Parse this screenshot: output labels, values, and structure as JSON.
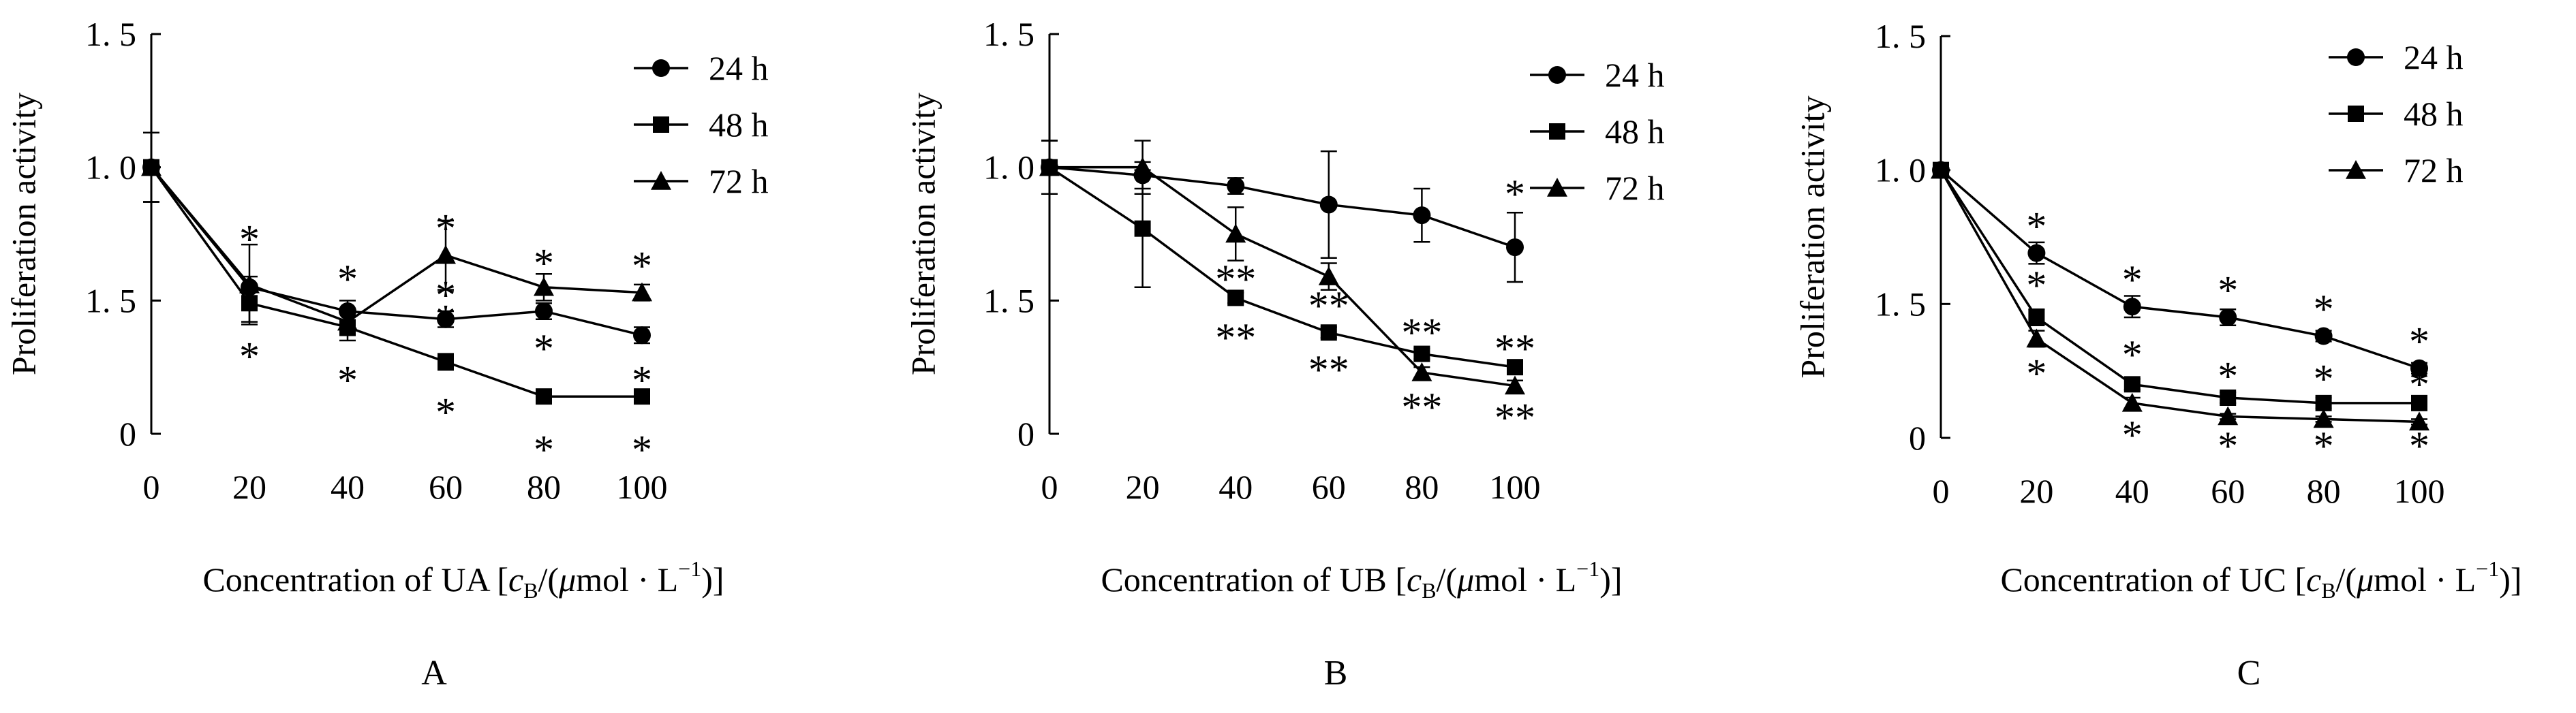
{
  "chart_data": [
    {
      "type": "line",
      "panel_label": "A",
      "ylabel": "Proliferation activity",
      "xlabel": {
        "prefix": "Concentration of ",
        "compound": "UA",
        "unit_open": " [",
        "c": "c",
        "sub": "B",
        "unit_mid": "/(",
        "mu": "μ",
        "unit_rest": "mol · L",
        "sup": "−1",
        "unit_close": ")]"
      },
      "y_tick_labels": [
        "0",
        "1. 5",
        "1. 0",
        "1. 5"
      ],
      "x_tick_labels": [
        "0",
        "20",
        "40",
        "60",
        "80",
        "100"
      ],
      "x": [
        0,
        20,
        40,
        60,
        80,
        100
      ],
      "ylim": [
        0,
        1.5
      ],
      "legend_position": "top-right",
      "series": [
        {
          "name": "24 h",
          "marker": "circle",
          "values": [
            1.0,
            0.55,
            0.46,
            0.43,
            0.46,
            0.37
          ],
          "err": [
            0.13,
            0.04,
            0.04,
            0.03,
            0.03,
            0.03
          ]
        },
        {
          "name": "48 h",
          "marker": "square",
          "values": [
            1.0,
            0.49,
            0.4,
            0.27,
            0.14,
            0.14
          ],
          "err": [
            0.13,
            0.07,
            0.05,
            0.03,
            0.02,
            0.02
          ]
        },
        {
          "name": "72 h",
          "marker": "triangle",
          "values": [
            1.0,
            0.56,
            0.42,
            0.67,
            0.55,
            0.53
          ],
          "err": [
            0.13,
            0.15,
            0.05,
            0.13,
            0.05,
            0.03
          ]
        }
      ],
      "annotations": [
        {
          "x": 20,
          "y": 0.73,
          "text": "*"
        },
        {
          "x": 20,
          "y": 0.29,
          "text": "*"
        },
        {
          "x": 40,
          "y": 0.58,
          "text": "*"
        },
        {
          "x": 40,
          "y": 0.2,
          "text": "*"
        },
        {
          "x": 60,
          "y": 0.77,
          "text": "*"
        },
        {
          "x": 60,
          "y": 0.52,
          "text": "*"
        },
        {
          "x": 60,
          "y": 0.43,
          "text": "*"
        },
        {
          "x": 60,
          "y": 0.08,
          "text": "*"
        },
        {
          "x": 80,
          "y": 0.64,
          "text": "*"
        },
        {
          "x": 80,
          "y": 0.32,
          "text": "*"
        },
        {
          "x": 80,
          "y": -0.06,
          "text": "*"
        },
        {
          "x": 100,
          "y": 0.63,
          "text": "*"
        },
        {
          "x": 100,
          "y": 0.2,
          "text": "*"
        },
        {
          "x": 100,
          "y": -0.06,
          "text": "*"
        }
      ]
    },
    {
      "type": "line",
      "panel_label": "B",
      "ylabel": "Proliferation activity",
      "xlabel": {
        "prefix": "Concentration of ",
        "compound": "UB",
        "unit_open": " [",
        "c": "c",
        "sub": "B",
        "unit_mid": "/(",
        "mu": "μ",
        "unit_rest": "mol · L",
        "sup": "−1",
        "unit_close": ")]"
      },
      "y_tick_labels": [
        "0",
        "1. 5",
        "1. 0",
        "1. 5"
      ],
      "x_tick_labels": [
        "0",
        "20",
        "40",
        "60",
        "80",
        "100"
      ],
      "x": [
        0,
        20,
        40,
        60,
        80,
        100
      ],
      "ylim": [
        0,
        1.5
      ],
      "legend_position": "top-right",
      "series": [
        {
          "name": "24 h",
          "marker": "circle",
          "values": [
            1.0,
            0.97,
            0.93,
            0.86,
            0.82,
            0.7
          ],
          "err": [
            0.1,
            0.05,
            0.03,
            0.2,
            0.1,
            0.13
          ]
        },
        {
          "name": "48 h",
          "marker": "square",
          "values": [
            1.0,
            0.77,
            0.51,
            0.38,
            0.3,
            0.25
          ],
          "err": [
            0.1,
            0.22,
            0.02,
            0.02,
            0.02,
            0.02
          ]
        },
        {
          "name": "72 h",
          "marker": "triangle",
          "values": [
            1.0,
            1.0,
            0.75,
            0.59,
            0.23,
            0.18
          ],
          "err": [
            0.1,
            0.1,
            0.1,
            0.05,
            0.02,
            0.02
          ]
        }
      ],
      "annotations": [
        {
          "x": 40,
          "y": 0.58,
          "text": "**"
        },
        {
          "x": 40,
          "y": 0.36,
          "text": "**"
        },
        {
          "x": 60,
          "y": 0.48,
          "text": "**"
        },
        {
          "x": 60,
          "y": 0.24,
          "text": "**"
        },
        {
          "x": 80,
          "y": 0.38,
          "text": "**"
        },
        {
          "x": 80,
          "y": 0.1,
          "text": "**"
        },
        {
          "x": 100,
          "y": 0.9,
          "text": "*"
        },
        {
          "x": 100,
          "y": 0.32,
          "text": "**"
        },
        {
          "x": 100,
          "y": 0.06,
          "text": "**"
        }
      ]
    },
    {
      "type": "line",
      "panel_label": "C",
      "ylabel": "Proliferation activity",
      "xlabel": {
        "prefix": "Concentration of ",
        "compound": "UC",
        "unit_open": " [",
        "c": "c",
        "sub": "B",
        "unit_mid": "/(",
        "mu": "μ",
        "unit_rest": "mol · L",
        "sup": "−1",
        "unit_close": ")]"
      },
      "y_tick_labels": [
        "0",
        "1. 5",
        "1. 0",
        "1. 5"
      ],
      "x_tick_labels": [
        "0",
        "20",
        "40",
        "60",
        "80",
        "100"
      ],
      "x": [
        0,
        20,
        40,
        60,
        80,
        100
      ],
      "ylim": [
        0,
        1.5
      ],
      "legend_position": "top-right",
      "series": [
        {
          "name": "24 h",
          "marker": "circle",
          "values": [
            1.0,
            0.69,
            0.49,
            0.45,
            0.38,
            0.26
          ],
          "err": [
            0.02,
            0.04,
            0.04,
            0.03,
            0.02,
            0.02
          ]
        },
        {
          "name": "48 h",
          "marker": "square",
          "values": [
            1.0,
            0.45,
            0.2,
            0.15,
            0.13,
            0.13
          ],
          "err": [
            0.02,
            0.03,
            0.02,
            0.02,
            0.02,
            0.02
          ]
        },
        {
          "name": "72 h",
          "marker": "triangle",
          "values": [
            1.0,
            0.37,
            0.13,
            0.08,
            0.07,
            0.06
          ],
          "err": [
            0.02,
            0.03,
            0.02,
            0.01,
            0.01,
            0.01
          ]
        }
      ],
      "annotations": [
        {
          "x": 20,
          "y": 0.79,
          "text": "*"
        },
        {
          "x": 20,
          "y": 0.57,
          "text": "*"
        },
        {
          "x": 20,
          "y": 0.24,
          "text": "*"
        },
        {
          "x": 40,
          "y": 0.59,
          "text": "*"
        },
        {
          "x": 40,
          "y": 0.31,
          "text": "*"
        },
        {
          "x": 40,
          "y": 0.01,
          "text": "*"
        },
        {
          "x": 60,
          "y": 0.55,
          "text": "*"
        },
        {
          "x": 60,
          "y": 0.23,
          "text": "*"
        },
        {
          "x": 60,
          "y": -0.03,
          "text": "*"
        },
        {
          "x": 80,
          "y": 0.48,
          "text": "*"
        },
        {
          "x": 80,
          "y": 0.22,
          "text": "*"
        },
        {
          "x": 80,
          "y": -0.03,
          "text": "*"
        },
        {
          "x": 100,
          "y": 0.36,
          "text": "*"
        },
        {
          "x": 100,
          "y": 0.2,
          "text": "*"
        },
        {
          "x": 100,
          "y": -0.03,
          "text": "*"
        }
      ]
    }
  ]
}
